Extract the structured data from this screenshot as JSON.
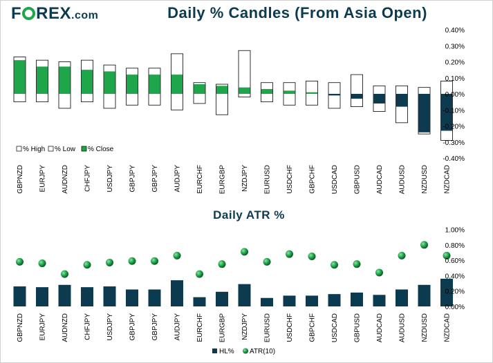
{
  "brand": {
    "name_part1": "F",
    "name_part2": "REX",
    "suffix": ".com"
  },
  "chart_data": [
    {
      "type": "bar",
      "title": "Daily % Candles (From Asia Open)",
      "categories": [
        "GBPNZD",
        "EURJPY",
        "AUDNZD",
        "CHFJPY",
        "USDJPY",
        "GBPJPY",
        "GBPJPY",
        "AUDJPY",
        "EURCHF",
        "EURGBP",
        "NZDJPY",
        "EURUSD",
        "USDCHF",
        "GBPCHF",
        "USDCAD",
        "GBPUSD",
        "AUDCAD",
        "AUDUSD",
        "NZDUSD",
        "NZDCAD"
      ],
      "series": [
        {
          "name": "% High",
          "values": [
            0.23,
            0.21,
            0.2,
            0.21,
            0.18,
            0.16,
            0.16,
            0.25,
            0.07,
            0.06,
            0.27,
            0.07,
            0.07,
            0.08,
            0.07,
            0.12,
            0.05,
            0.05,
            0.04,
            0.08
          ]
        },
        {
          "name": "% Low",
          "values": [
            -0.05,
            -0.05,
            -0.09,
            -0.05,
            -0.09,
            -0.07,
            -0.07,
            -0.1,
            -0.06,
            -0.13,
            -0.02,
            -0.05,
            -0.07,
            -0.07,
            -0.09,
            -0.08,
            -0.11,
            -0.18,
            -0.25,
            -0.29
          ]
        },
        {
          "name": "% Close",
          "values": [
            0.21,
            0.17,
            0.17,
            0.15,
            0.14,
            0.12,
            0.12,
            0.12,
            0.06,
            0.05,
            0.04,
            0.03,
            0.02,
            0.01,
            -0.01,
            -0.03,
            -0.06,
            -0.08,
            -0.24,
            -0.23
          ]
        }
      ],
      "yticks": [
        "0.40%",
        "0.30%",
        "0.20%",
        "0.10%",
        "0.00%",
        "-0.10%",
        "-0.20%",
        "-0.30%",
        "-0.40%"
      ],
      "ylim": [
        -0.4,
        0.4
      ],
      "legend": [
        "% High",
        "% Low",
        "% Close"
      ],
      "colors": {
        "up": "#1fa64a",
        "down": "#0c3a4f",
        "range_fill": "#ffffff",
        "range_stroke": "#000000"
      }
    },
    {
      "type": "bar",
      "title": "Daily ATR %",
      "categories": [
        "GBPNZD",
        "EURJPY",
        "AUDNZD",
        "CHFJPY",
        "USDJPY",
        "GBPJPY",
        "GBPJPY",
        "AUDJPY",
        "EURCHF",
        "EURGBP",
        "NZDJPY",
        "EURUSD",
        "USDCHF",
        "GBPCHF",
        "USDCAD",
        "GBPUSD",
        "AUDCAD",
        "AUDUSD",
        "NZDUSD",
        "NZDCAD"
      ],
      "series": [
        {
          "name": "HL%",
          "values": [
            0.26,
            0.25,
            0.28,
            0.25,
            0.26,
            0.22,
            0.22,
            0.34,
            0.12,
            0.19,
            0.29,
            0.11,
            0.14,
            0.14,
            0.16,
            0.18,
            0.15,
            0.22,
            0.28,
            0.36
          ]
        },
        {
          "name": "ATR(10)",
          "values": [
            0.58,
            0.56,
            0.42,
            0.54,
            0.57,
            0.59,
            0.59,
            0.66,
            0.42,
            0.55,
            0.71,
            0.58,
            0.68,
            0.65,
            0.54,
            0.55,
            0.44,
            0.66,
            0.8,
            0.66
          ]
        }
      ],
      "yticks": [
        "1.00%",
        "0.80%",
        "0.60%",
        "0.40%",
        "0.20%",
        "0.00%"
      ],
      "ylim": [
        0,
        1.0
      ],
      "legend": [
        "HL%",
        "ATR(10)"
      ],
      "colors": {
        "bar": "#0c3a4f",
        "dot": "#1fa64a"
      }
    }
  ]
}
